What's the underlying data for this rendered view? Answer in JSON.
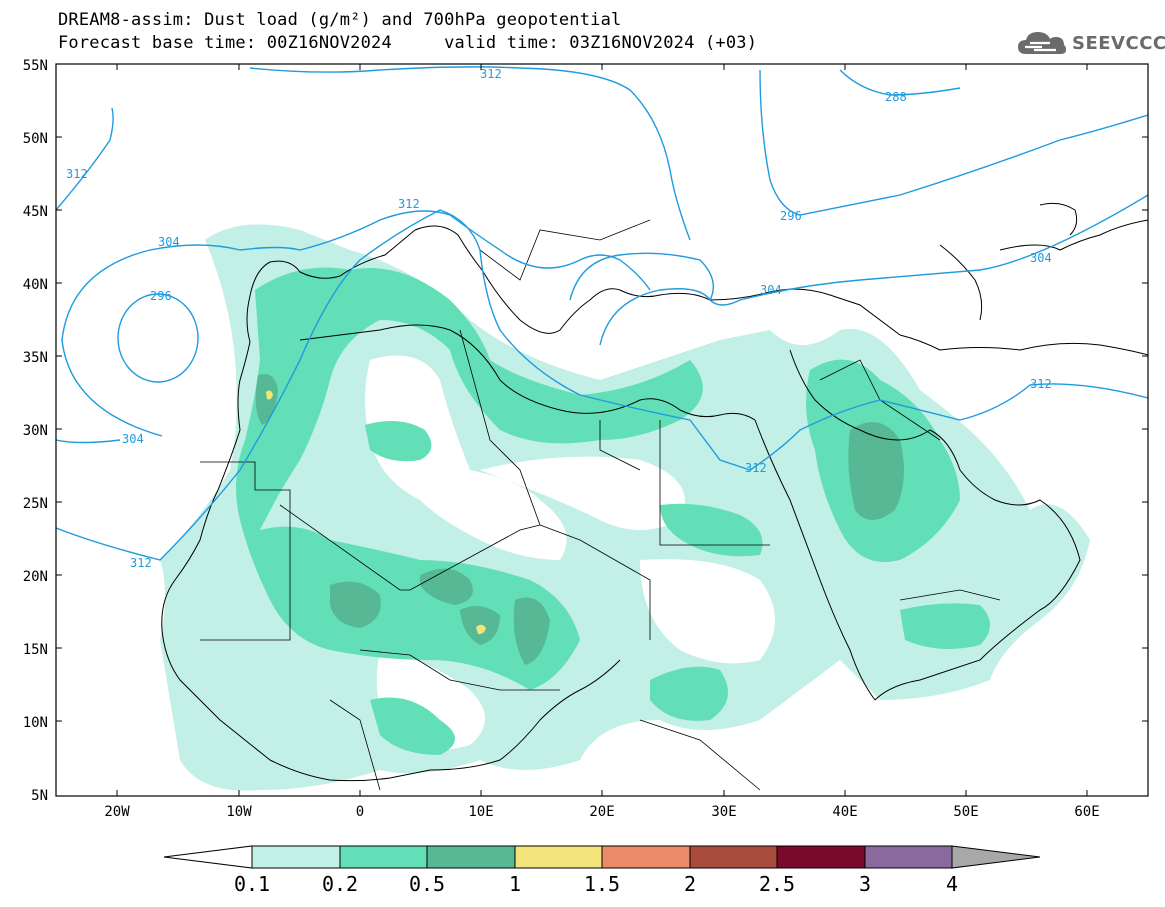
{
  "title": {
    "line1": "DREAM8-assim: Dust load (g/m²) and 700hPa geopotential",
    "line2": "Forecast base time: 00Z16NOV2024     valid time: 03Z16NOV2024 (+03)"
  },
  "logo": {
    "text": "SEEVCCC",
    "icon": "cloud-icon"
  },
  "map": {
    "lat_labels": [
      "55N",
      "50N",
      "45N",
      "40N",
      "35N",
      "30N",
      "25N",
      "20N",
      "15N",
      "10N",
      "5N"
    ],
    "lon_labels": [
      "20W",
      "10W",
      "0",
      "10E",
      "20E",
      "30E",
      "40E",
      "50E",
      "60E"
    ],
    "contour_labels": [
      "312",
      "304",
      "296",
      "304",
      "312",
      "312",
      "288",
      "296",
      "304",
      "304",
      "312",
      "312",
      "312"
    ]
  },
  "colorbar": {
    "ticks": [
      "0.1",
      "0.2",
      "0.5",
      "1",
      "1.5",
      "2",
      "2.5",
      "3",
      "4"
    ],
    "colors": [
      "#ffffff",
      "#c2f0e6",
      "#62dfb6",
      "#57b896",
      "#f2e47a",
      "#e88b66",
      "#aa4b40",
      "#7a0a2c",
      "#8a6a9e",
      "#a8a8a8"
    ]
  }
}
